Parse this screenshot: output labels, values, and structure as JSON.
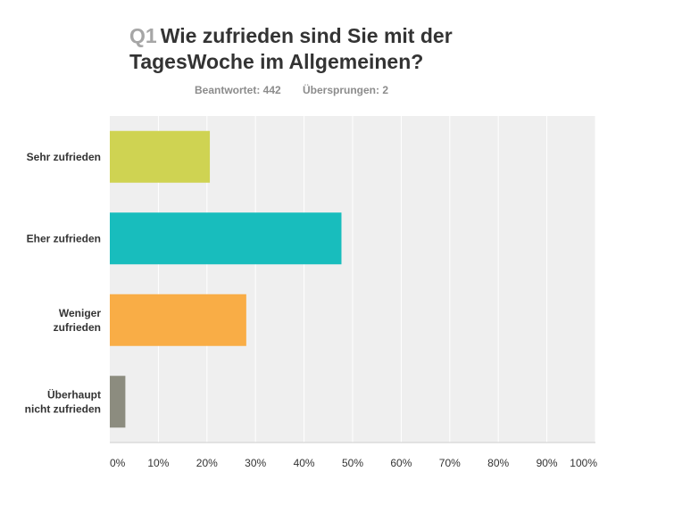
{
  "question": {
    "number": "Q1",
    "text": "Wie zufrieden sind Sie mit der TagesWoche im Allgemeinen?"
  },
  "stats": {
    "answered": "Beantwortet: 442",
    "skipped": "Übersprungen: 2"
  },
  "chart_data": {
    "type": "bar",
    "orientation": "horizontal",
    "categories": [
      [
        "Sehr zufrieden"
      ],
      [
        "Eher zufrieden"
      ],
      [
        "Weniger",
        "zufrieden"
      ],
      [
        "Überhaupt",
        "nicht zufrieden"
      ]
    ],
    "values": [
      20.6,
      47.7,
      28.1,
      3.2
    ],
    "colors": [
      "#cfd352",
      "#18bdbd",
      "#f9ad46",
      "#8c8c7f"
    ],
    "xlim": [
      0,
      100
    ],
    "xticks": [
      "0%",
      "10%",
      "20%",
      "30%",
      "40%",
      "50%",
      "60%",
      "70%",
      "80%",
      "90%",
      "100%"
    ],
    "grid": true,
    "background": "#efefef",
    "grid_color": "#ffffff"
  }
}
